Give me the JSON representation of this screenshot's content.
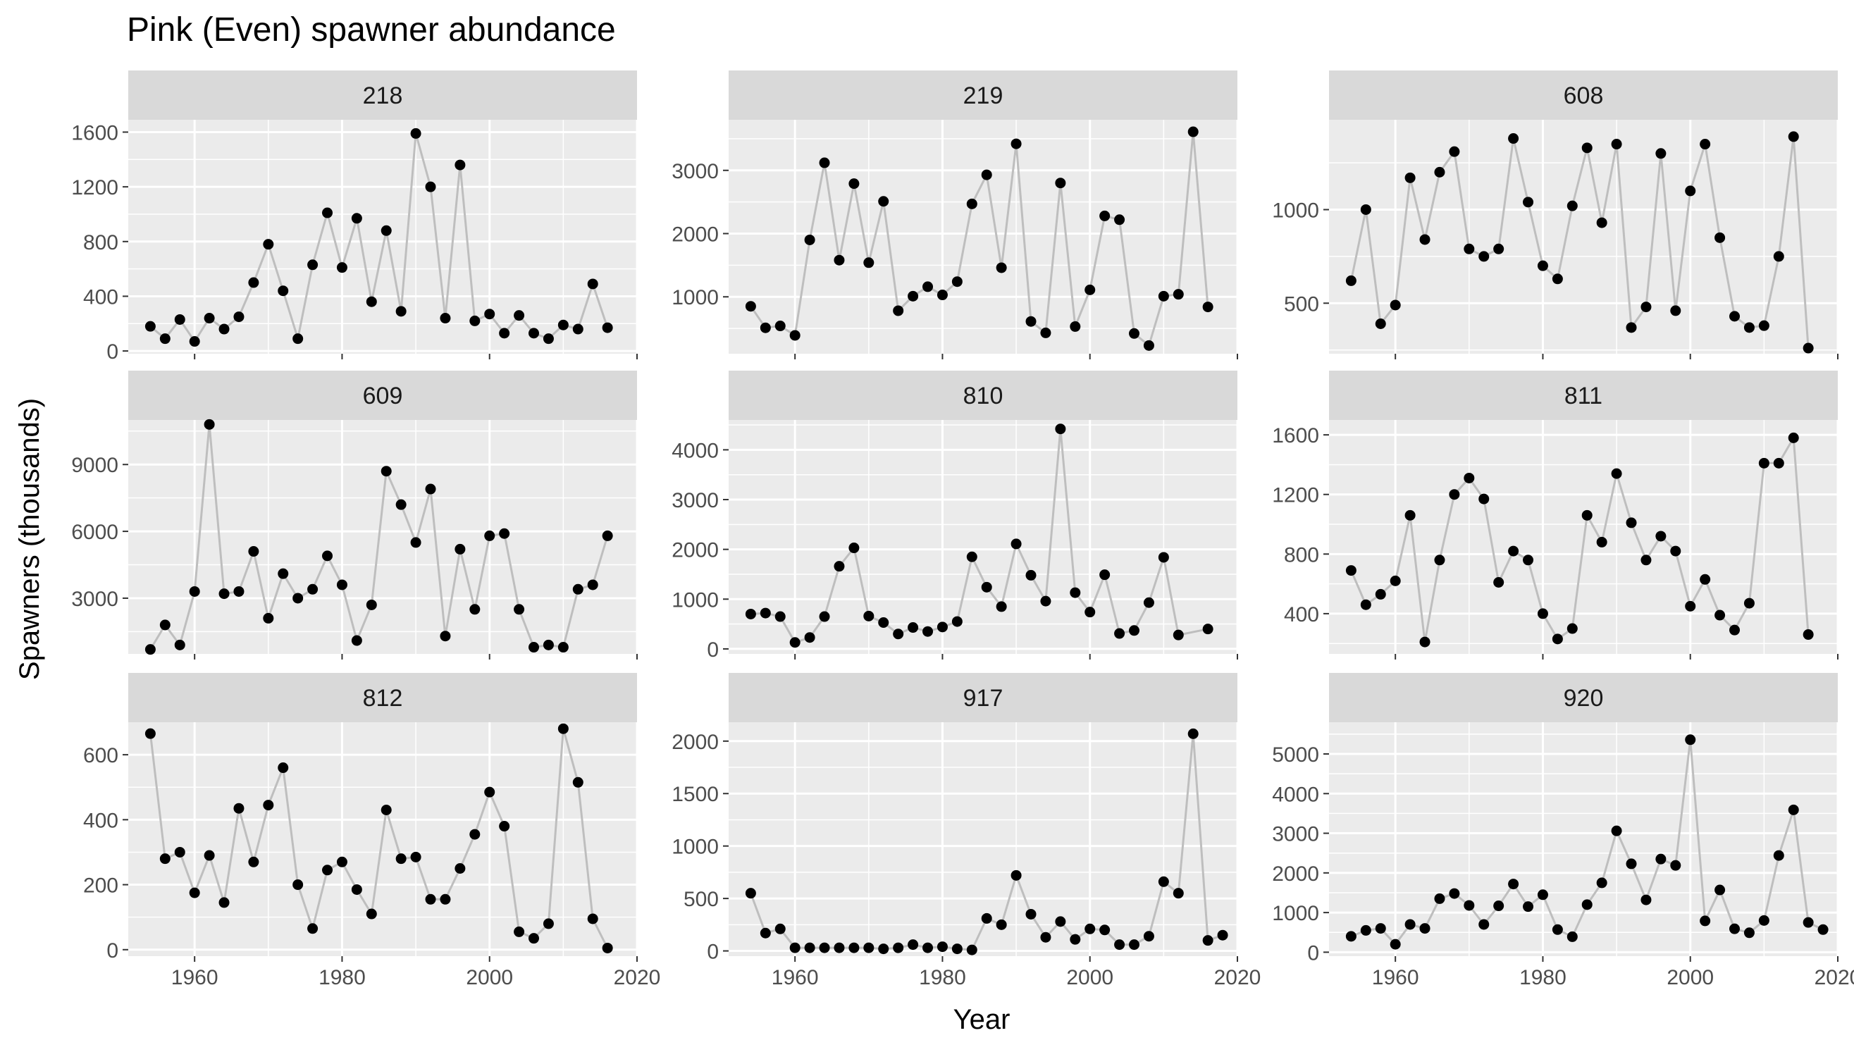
{
  "chart_data": {
    "type": "line",
    "title": "Pink (Even) spawner abundance",
    "xlabel": "Year",
    "ylabel": "Spawners (thousands)",
    "xlim": [
      1951,
      2020
    ],
    "x_ticks": [
      1960,
      1980,
      2000,
      2020
    ],
    "grid": true,
    "legend": "none",
    "colors": {
      "panel_bg": "#EBEBEB",
      "strip_bg": "#D9D9D9",
      "grid": "#FFFFFF",
      "line": "#BEBEBE",
      "point": "#000000",
      "text": "#4D4D4D"
    },
    "facets": [
      {
        "label": "218",
        "ylim": [
          -20,
          1690
        ],
        "y_ticks": [
          0,
          400,
          800,
          1200,
          1600
        ],
        "series": [
          {
            "x": [
              1954,
              1956,
              1958,
              1960,
              1962,
              1964,
              1966,
              1968,
              1970,
              1972,
              1974,
              1976,
              1978,
              1980,
              1982,
              1984,
              1986,
              1988,
              1990,
              1992,
              1994,
              1996,
              1998,
              2000,
              2002,
              2004,
              2006,
              2008,
              2010,
              2012,
              2014,
              2016
            ],
            "y": [
              180,
              90,
              230,
              70,
              240,
              160,
              250,
              500,
              780,
              440,
              90,
              630,
              1010,
              610,
              970,
              360,
              880,
              290,
              1590,
              1200,
              240,
              1360,
              220,
              270,
              130,
              260,
              130,
              90,
              190,
              160,
              490,
              170
            ]
          }
        ]
      },
      {
        "label": "219",
        "ylim": [
          100,
          3800
        ],
        "y_ticks": [
          1000,
          2000,
          3000
        ],
        "series": [
          {
            "x": [
              1954,
              1956,
              1958,
              1960,
              1962,
              1964,
              1966,
              1968,
              1970,
              1972,
              1974,
              1976,
              1978,
              1980,
              1982,
              1984,
              1986,
              1988,
              1990,
              1992,
              1994,
              1996,
              1998,
              2000,
              2002,
              2004,
              2006,
              2008,
              2010,
              2012,
              2014,
              2016
            ],
            "y": [
              850,
              510,
              540,
              390,
              1900,
              3120,
              1580,
              2790,
              1540,
              2510,
              780,
              1010,
              1160,
              1030,
              1240,
              2470,
              2930,
              1460,
              3420,
              610,
              430,
              2800,
              530,
              1110,
              2280,
              2220,
              420,
              230,
              1010,
              1040,
              3610,
              840
            ]
          }
        ]
      },
      {
        "label": "608",
        "ylim": [
          230,
          1480
        ],
        "y_ticks": [
          500,
          1000
        ],
        "series": [
          {
            "x": [
              1954,
              1956,
              1958,
              1960,
              1962,
              1964,
              1966,
              1968,
              1970,
              1972,
              1974,
              1976,
              1978,
              1980,
              1982,
              1984,
              1986,
              1988,
              1990,
              1992,
              1994,
              1996,
              1998,
              2000,
              2002,
              2004,
              2006,
              2008,
              2010,
              2012,
              2014,
              2016
            ],
            "y": [
              620,
              1000,
              390,
              490,
              1170,
              840,
              1200,
              1310,
              790,
              750,
              790,
              1380,
              1040,
              700,
              630,
              1020,
              1330,
              930,
              1350,
              370,
              480,
              1300,
              460,
              1100,
              1350,
              850,
              430,
              370,
              380,
              750,
              1390,
              260
            ]
          }
        ]
      },
      {
        "label": "609",
        "ylim": [
          500,
          11000
        ],
        "y_ticks": [
          3000,
          6000,
          9000
        ],
        "series": [
          {
            "x": [
              1954,
              1956,
              1958,
              1960,
              1962,
              1964,
              1966,
              1968,
              1970,
              1972,
              1974,
              1976,
              1978,
              1980,
              1982,
              1984,
              1986,
              1988,
              1990,
              1992,
              1994,
              1996,
              1998,
              2000,
              2002,
              2004,
              2006,
              2008,
              2010,
              2012,
              2014,
              2016
            ],
            "y": [
              700,
              1800,
              900,
              3300,
              10800,
              3200,
              3300,
              5100,
              2100,
              4100,
              3000,
              3400,
              4900,
              3600,
              1100,
              2700,
              8700,
              7200,
              5500,
              7900,
              1300,
              5200,
              2500,
              5800,
              5900,
              2500,
              800,
              900,
              800,
              3400,
              3600,
              5800
            ]
          }
        ]
      },
      {
        "label": "810",
        "ylim": [
          -100,
          4600
        ],
        "y_ticks": [
          0,
          1000,
          2000,
          3000,
          4000
        ],
        "series": [
          {
            "x": [
              1954,
              1956,
              1958,
              1960,
              1962,
              1964,
              1966,
              1968,
              1970,
              1972,
              1974,
              1976,
              1978,
              1980,
              1982,
              1984,
              1986,
              1988,
              1990,
              1992,
              1994,
              1996,
              1998,
              2000,
              2002,
              2004,
              2006,
              2008,
              2010,
              2012,
              2016
            ],
            "y": [
              700,
              720,
              650,
              130,
              230,
              650,
              1660,
              2030,
              660,
              530,
              300,
              430,
              350,
              440,
              550,
              1850,
              1240,
              850,
              2110,
              1480,
              960,
              4420,
              1130,
              740,
              1490,
              310,
              370,
              930,
              1840,
              280,
              400
            ]
          }
        ]
      },
      {
        "label": "811",
        "ylim": [
          130,
          1700
        ],
        "y_ticks": [
          400,
          800,
          1200,
          1600
        ],
        "series": [
          {
            "x": [
              1954,
              1956,
              1958,
              1960,
              1962,
              1964,
              1966,
              1968,
              1970,
              1972,
              1974,
              1976,
              1978,
              1980,
              1982,
              1984,
              1986,
              1988,
              1990,
              1992,
              1994,
              1996,
              1998,
              2000,
              2002,
              2004,
              2006,
              2008,
              2010,
              2012,
              2014,
              2016
            ],
            "y": [
              690,
              460,
              530,
              620,
              1060,
              210,
              760,
              1200,
              1310,
              1170,
              610,
              820,
              760,
              400,
              230,
              300,
              1060,
              880,
              1340,
              1010,
              760,
              920,
              820,
              450,
              630,
              390,
              290,
              470,
              1410,
              1410,
              1580,
              260
            ]
          }
        ]
      },
      {
        "label": "812",
        "ylim": [
          -20,
          700
        ],
        "y_ticks": [
          0,
          200,
          400,
          600
        ],
        "series": [
          {
            "x": [
              1954,
              1956,
              1958,
              1960,
              1962,
              1964,
              1966,
              1968,
              1970,
              1972,
              1974,
              1976,
              1978,
              1980,
              1982,
              1984,
              1986,
              1988,
              1990,
              1992,
              1994,
              1996,
              1998,
              2000,
              2002,
              2004,
              2006,
              2008,
              2010,
              2012,
              2014,
              2016
            ],
            "y": [
              665,
              280,
              300,
              175,
              290,
              145,
              435,
              270,
              445,
              560,
              200,
              65,
              245,
              270,
              185,
              110,
              430,
              280,
              285,
              155,
              155,
              250,
              355,
              485,
              380,
              55,
              35,
              80,
              680,
              515,
              95,
              5
            ]
          }
        ]
      },
      {
        "label": "917",
        "ylim": [
          -50,
          2180
        ],
        "y_ticks": [
          0,
          500,
          1000,
          1500,
          2000
        ],
        "series": [
          {
            "x": [
              1954,
              1956,
              1958,
              1960,
              1962,
              1964,
              1966,
              1968,
              1970,
              1972,
              1974,
              1976,
              1978,
              1980,
              1982,
              1984,
              1986,
              1988,
              1990,
              1992,
              1994,
              1996,
              1998,
              2000,
              2002,
              2004,
              2006,
              2008,
              2010,
              2012,
              2014,
              2016,
              2018
            ],
            "y": [
              550,
              170,
              210,
              30,
              30,
              30,
              30,
              30,
              30,
              20,
              30,
              60,
              30,
              40,
              20,
              10,
              310,
              250,
              720,
              350,
              130,
              280,
              110,
              210,
              200,
              60,
              60,
              140,
              660,
              550,
              2070,
              100,
              150
            ]
          }
        ]
      },
      {
        "label": "920",
        "ylim": [
          -100,
          5800
        ],
        "y_ticks": [
          0,
          1000,
          2000,
          3000,
          4000,
          5000
        ],
        "series": [
          {
            "x": [
              1954,
              1956,
              1958,
              1960,
              1962,
              1964,
              1966,
              1968,
              1970,
              1972,
              1974,
              1976,
              1978,
              1980,
              1982,
              1984,
              1986,
              1988,
              1990,
              1992,
              1994,
              1996,
              1998,
              2000,
              2002,
              2004,
              2006,
              2008,
              2010,
              2012,
              2014,
              2016,
              2018
            ],
            "y": [
              400,
              550,
              600,
              200,
              700,
              600,
              1350,
              1480,
              1180,
              700,
              1170,
              1720,
              1150,
              1450,
              570,
              390,
              1200,
              1750,
              3060,
              2230,
              1320,
              2350,
              2190,
              5360,
              790,
              1570,
              590,
              490,
              800,
              2440,
              3590,
              750,
              570
            ]
          }
        ]
      }
    ]
  }
}
